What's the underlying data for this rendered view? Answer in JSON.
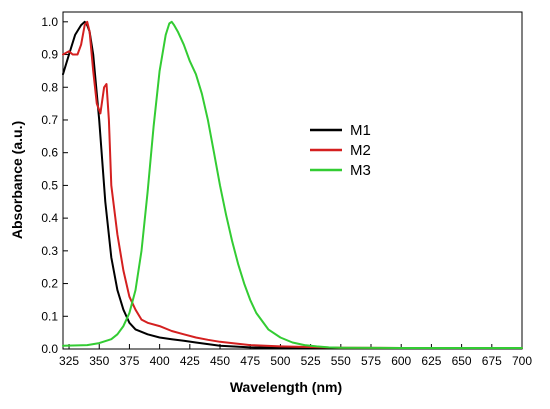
{
  "chart_data": {
    "type": "line",
    "title": "",
    "xlabel": "Wavelength (nm)",
    "ylabel": "Absorbance (a.u.)",
    "xlim": [
      320,
      700
    ],
    "ylim": [
      0,
      1.03
    ],
    "x_ticks": [
      325,
      350,
      375,
      400,
      425,
      450,
      475,
      500,
      525,
      550,
      575,
      600,
      625,
      650,
      675,
      700
    ],
    "x_tick_labels": [
      "325",
      "350",
      "375",
      "400",
      "425",
      "450",
      "475",
      "500",
      "525",
      "550",
      "575",
      "600",
      "625",
      "650",
      "675",
      "700"
    ],
    "y_ticks": [
      0.0,
      0.1,
      0.2,
      0.3,
      0.4,
      0.5,
      0.6,
      0.7,
      0.8,
      0.9,
      1.0
    ],
    "y_tick_labels": [
      "0.0",
      "0.1",
      "0.2",
      "0.3",
      "0.4",
      "0.5",
      "0.6",
      "0.7",
      "0.8",
      "0.9",
      "1.0"
    ],
    "grid": false,
    "legend_position": "center",
    "series": [
      {
        "name": "M1",
        "color": "#000000",
        "x": [
          320,
          325,
          330,
          335,
          338,
          340,
          342,
          345,
          350,
          355,
          360,
          365,
          370,
          375,
          380,
          390,
          400,
          410,
          420,
          430,
          440,
          450,
          475,
          500,
          550,
          600,
          650,
          700
        ],
        "y": [
          0.84,
          0.9,
          0.96,
          0.99,
          1.0,
          0.99,
          0.97,
          0.9,
          0.7,
          0.45,
          0.28,
          0.18,
          0.12,
          0.08,
          0.06,
          0.045,
          0.035,
          0.03,
          0.025,
          0.02,
          0.015,
          0.01,
          0.005,
          0.004,
          0.003,
          0.003,
          0.002,
          0.002
        ]
      },
      {
        "name": "M2",
        "color": "#d42020",
        "x": [
          320,
          325,
          328,
          332,
          335,
          338,
          340,
          342,
          345,
          348,
          351,
          354,
          356,
          358,
          360,
          365,
          370,
          375,
          380,
          385,
          390,
          400,
          410,
          420,
          430,
          440,
          450,
          460,
          475,
          500,
          550,
          600,
          650,
          700
        ],
        "y": [
          0.9,
          0.91,
          0.9,
          0.9,
          0.93,
          0.99,
          1.0,
          0.97,
          0.85,
          0.75,
          0.72,
          0.8,
          0.81,
          0.7,
          0.5,
          0.35,
          0.24,
          0.16,
          0.12,
          0.09,
          0.08,
          0.07,
          0.055,
          0.045,
          0.035,
          0.028,
          0.022,
          0.018,
          0.012,
          0.008,
          0.004,
          0.003,
          0.003,
          0.003
        ]
      },
      {
        "name": "M3",
        "color": "#33cc33",
        "x": [
          320,
          340,
          350,
          360,
          365,
          370,
          375,
          380,
          385,
          390,
          395,
          400,
          405,
          408,
          410,
          412,
          415,
          420,
          425,
          430,
          435,
          440,
          445,
          450,
          455,
          460,
          465,
          470,
          475,
          480,
          490,
          500,
          510,
          520,
          530,
          540,
          550,
          600,
          650,
          700
        ],
        "y": [
          0.01,
          0.012,
          0.018,
          0.03,
          0.045,
          0.07,
          0.11,
          0.18,
          0.3,
          0.48,
          0.68,
          0.85,
          0.96,
          0.995,
          1.0,
          0.99,
          0.97,
          0.93,
          0.88,
          0.84,
          0.78,
          0.7,
          0.6,
          0.5,
          0.41,
          0.33,
          0.26,
          0.2,
          0.15,
          0.11,
          0.06,
          0.035,
          0.02,
          0.012,
          0.008,
          0.005,
          0.004,
          0.003,
          0.003,
          0.003
        ]
      }
    ]
  }
}
